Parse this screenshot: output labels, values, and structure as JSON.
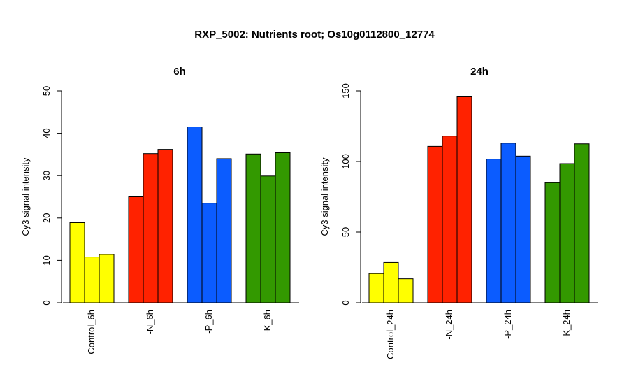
{
  "main_title": "RXP_5002: Nutrients root; Os10g0112800_12774",
  "chart_data": [
    {
      "type": "bar",
      "title": "6h",
      "xlabel": "",
      "ylabel": "Cy3 signal intensity",
      "ylim": [
        0,
        50
      ],
      "yticks": [
        0,
        10,
        20,
        30,
        40,
        50
      ],
      "grid": false,
      "groups": [
        {
          "label": "Control_6h",
          "color": "#FFFF00",
          "values": [
            18.9,
            10.8,
            11.4
          ]
        },
        {
          "label": "-N_6h",
          "color": "#FF2200",
          "values": [
            25.0,
            35.2,
            36.2
          ]
        },
        {
          "label": "-P_6h",
          "color": "#0B5CFF",
          "values": [
            41.5,
            23.5,
            34.0
          ]
        },
        {
          "label": "-K_6h",
          "color": "#339900",
          "values": [
            35.1,
            29.9,
            35.4
          ]
        }
      ]
    },
    {
      "type": "bar",
      "title": "24h",
      "xlabel": "",
      "ylabel": "Cy3 signal intensity",
      "ylim": [
        0,
        150
      ],
      "yticks": [
        0,
        50,
        100,
        150
      ],
      "grid": false,
      "groups": [
        {
          "label": "Control_24h",
          "color": "#FFFF00",
          "values": [
            20.7,
            28.5,
            17.0
          ]
        },
        {
          "label": "-N_24h",
          "color": "#FF2200",
          "values": [
            110.7,
            118.0,
            145.8
          ]
        },
        {
          "label": "-P_24h",
          "color": "#0B5CFF",
          "values": [
            101.7,
            113.0,
            103.8
          ]
        },
        {
          "label": "-K_24h",
          "color": "#339900",
          "values": [
            85.0,
            98.5,
            112.5
          ]
        }
      ]
    }
  ]
}
